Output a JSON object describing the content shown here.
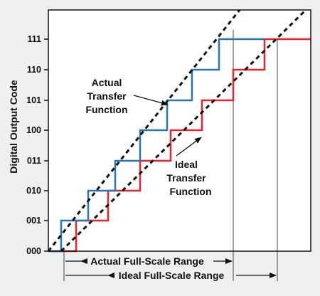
{
  "y_axis": {
    "title": "Digital Output Code",
    "codes": [
      "000",
      "001",
      "010",
      "011",
      "100",
      "101",
      "110",
      "111"
    ]
  },
  "annotations": {
    "actual": [
      "Actual",
      "Transfer",
      "Function"
    ],
    "ideal": [
      "Ideal",
      "Transfer",
      "Function"
    ]
  },
  "ranges": {
    "actual_label": "Actual Full-Scale Range",
    "ideal_label": "Ideal Full-Scale Range"
  },
  "colors": {
    "actual": "#2a74b8",
    "ideal": "#e8242d",
    "dashed": "#111111",
    "background": "#eef0ef",
    "plot_bg": "#ffffff"
  }
}
